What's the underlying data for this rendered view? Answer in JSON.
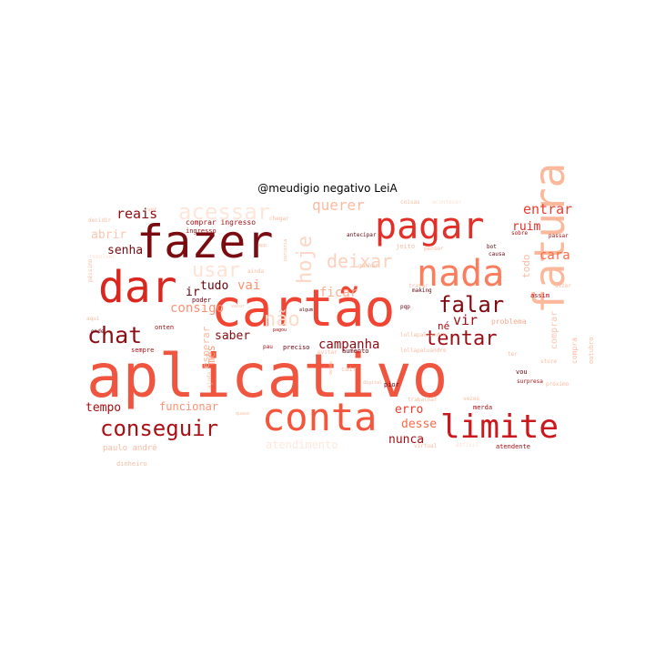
{
  "chart_data": {
    "type": "wordcloud",
    "title": "@meudigio negativo LeiA",
    "words": [
      {
        "text": "aplicativo",
        "weight": 100,
        "color": "#f0553f"
      },
      {
        "text": "cartão",
        "weight": 70,
        "color": "#f14432"
      },
      {
        "text": "fatura",
        "weight": 56,
        "color": "#fcb89b",
        "rotate": true
      },
      {
        "text": "fazer",
        "weight": 52,
        "color": "#7a0b10"
      },
      {
        "text": "pagar",
        "weight": 45,
        "color": "#e32f27"
      },
      {
        "text": "nada",
        "weight": 44,
        "color": "#fb7d5d"
      },
      {
        "text": "dar",
        "weight": 44,
        "color": "#d9261e"
      },
      {
        "text": "conta",
        "weight": 40,
        "color": "#f5553b"
      },
      {
        "text": "limite",
        "weight": 37,
        "color": "#cb181d"
      },
      {
        "text": "conseguir",
        "weight": 25,
        "color": "#ab1016"
      },
      {
        "text": "chat",
        "weight": 24,
        "color": "#8e0c12"
      },
      {
        "text": "falar",
        "weight": 22,
        "color": "#7f0b10"
      },
      {
        "text": "tentar",
        "weight": 19,
        "color": "#9d0d14"
      },
      {
        "text": "hoje",
        "weight": 19,
        "color": "#fdd5c4",
        "rotate": true
      },
      {
        "text": "acessar",
        "weight": 21,
        "color": "#fee6da"
      },
      {
        "text": "deixar",
        "weight": 19,
        "color": "#fdd0bc"
      },
      {
        "text": "usar",
        "weight": 19,
        "color": "#fee3d6"
      },
      {
        "text": "não",
        "weight": 20,
        "color": "#fddbc9"
      },
      {
        "text": "campanha",
        "weight": 12,
        "color": "#8b0b12"
      },
      {
        "text": "reais",
        "weight": 13,
        "color": "#8e0c12"
      },
      {
        "text": "entrar",
        "weight": 13,
        "color": "#ef3b2c"
      },
      {
        "text": "querer",
        "weight": 13,
        "color": "#fcbba1"
      },
      {
        "text": "vir",
        "weight": 13,
        "color": "#a50f15"
      },
      {
        "text": "senha",
        "weight": 11,
        "color": "#7a0b10"
      },
      {
        "text": "ruim",
        "weight": 11,
        "color": "#de2d26"
      },
      {
        "text": "cara",
        "weight": 11,
        "color": "#fb6a4a"
      },
      {
        "text": "ficar",
        "weight": 12,
        "color": "#fcae91"
      },
      {
        "text": "consigo",
        "weight": 12,
        "color": "#fc9272"
      },
      {
        "text": "tudo",
        "weight": 11,
        "color": "#67000d"
      },
      {
        "text": "vai",
        "weight": 11,
        "color": "#fc9272"
      },
      {
        "text": "ir",
        "weight": 11,
        "color": "#67000d"
      },
      {
        "text": "abrir",
        "weight": 11,
        "color": "#fcc5af"
      },
      {
        "text": "saber",
        "weight": 11,
        "color": "#8b0b12"
      },
      {
        "text": "mês",
        "weight": 11,
        "color": "#fc9c7d",
        "rotate": true
      },
      {
        "text": "esperar",
        "weight": 10,
        "color": "#fcbba1",
        "rotate": true
      },
      {
        "text": "nunca",
        "weight": 11,
        "color": "#a50f15"
      },
      {
        "text": "erro",
        "weight": 11,
        "color": "#ef3b2c"
      },
      {
        "text": "desse",
        "weight": 11,
        "color": "#fb6a4a"
      },
      {
        "text": "tempo",
        "weight": 11,
        "color": "#a50f15"
      },
      {
        "text": "funcionar",
        "weight": 10,
        "color": "#fc9272"
      },
      {
        "text": "atendimento",
        "weight": 10,
        "color": "#fee8dd"
      },
      {
        "text": "todo",
        "weight": 9,
        "color": "#fcbba1",
        "rotate": true
      },
      {
        "text": "comprar",
        "weight": 8,
        "color": "#fcc5af",
        "rotate": true
      },
      {
        "text": "né",
        "weight": 9,
        "color": "#a50f15"
      },
      {
        "text": "paulo andré",
        "weight": 7,
        "color": "#fcbba1"
      },
      {
        "text": "comprar ingresso",
        "weight": 6,
        "color": "#a50f15"
      },
      {
        "text": "ingresso",
        "weight": 6,
        "color": "#a50f15"
      },
      {
        "text": "compra",
        "weight": 6,
        "color": "#fcbba1",
        "rotate": true
      },
      {
        "text": "problema",
        "weight": 6,
        "color": "#fcaa8d"
      },
      {
        "text": "atendente",
        "weight": 6,
        "color": "#a50f15"
      },
      {
        "text": "outubro",
        "weight": 6,
        "color": "#fcbba1",
        "rotate": true
      },
      {
        "text": "aumento",
        "weight": 5,
        "color": "#67000d"
      },
      {
        "text": "antecipar",
        "weight": 5,
        "color": "#67000d"
      },
      {
        "text": "sobre",
        "weight": 5,
        "color": "#a50f15"
      },
      {
        "text": "passar",
        "weight": 5,
        "color": "#a50f15"
      },
      {
        "text": "jeito",
        "weight": 5,
        "color": "#fcbba1"
      },
      {
        "text": "tratar",
        "weight": 5,
        "color": "#fcbba1"
      },
      {
        "text": "making",
        "weight": 5,
        "color": "#67000d"
      },
      {
        "text": "assim",
        "weight": 5,
        "color": "#a50f15"
      },
      {
        "text": "poder",
        "weight": 5,
        "color": "#67000d"
      },
      {
        "text": "preciso",
        "weight": 5,
        "color": "#67000d"
      },
      {
        "text": "sempre",
        "weight": 5,
        "color": "#a50f15"
      },
      {
        "text": "onten",
        "weight": 5,
        "color": "#a50f15"
      },
      {
        "text": "evitar",
        "weight": 5,
        "color": "#fcbba1"
      },
      {
        "text": "cair",
        "weight": 5,
        "color": "#fcbba1"
      },
      {
        "text": "vou",
        "weight": 5,
        "color": "#67000d"
      },
      {
        "text": "pior",
        "weight": 5,
        "color": "#67000d"
      },
      {
        "text": "merda",
        "weight": 5,
        "color": "#a50f15"
      },
      {
        "text": "dinheiro",
        "weight": 5,
        "color": "#fcbba1"
      },
      {
        "text": "onde",
        "weight": 4,
        "color": "#67000d"
      },
      {
        "text": "ajuda",
        "weight": 4,
        "color": "#fcbba1",
        "rotate": true
      },
      {
        "text": "ainda",
        "weight": 4,
        "color": "#fcbba1"
      },
      {
        "text": "chegar",
        "weight": 4,
        "color": "#fcbba1"
      },
      {
        "text": "coisas",
        "weight": 4,
        "color": "#fcbba1"
      },
      {
        "text": "acontecer",
        "weight": 4,
        "color": "#fee0d2"
      },
      {
        "text": "decidir",
        "weight": 4,
        "color": "#fcbba1"
      },
      {
        "text": "resolver",
        "weight": 4,
        "color": "#fee0d2"
      },
      {
        "text": "ver",
        "weight": 4,
        "color": "#fcbba1"
      },
      {
        "text": "bot",
        "weight": 4,
        "color": "#67000d"
      },
      {
        "text": "causa",
        "weight": 4,
        "color": "#67000d"
      },
      {
        "text": "pensar",
        "weight": 4,
        "color": "#fcbba1"
      },
      {
        "text": "lollapaluandre",
        "weight": 4,
        "color": "#fcbba1"
      },
      {
        "text": "ter",
        "weight": 4,
        "color": "#fcbba1"
      },
      {
        "text": "store",
        "weight": 4,
        "color": "#fcbba1"
      },
      {
        "text": "virtual",
        "weight": 4,
        "color": "#fcbba1"
      },
      {
        "text": "difícil",
        "weight": 4,
        "color": "#fee0d2"
      },
      {
        "text": "vezes",
        "weight": 4,
        "color": "#fcbba1"
      },
      {
        "text": "trabalhar",
        "weight": 4,
        "color": "#fcbba1"
      },
      {
        "text": "ganhar",
        "weight": 4,
        "color": "#fcbba1"
      },
      {
        "text": "app",
        "weight": 4,
        "color": "#fcbba1"
      },
      {
        "text": "surpresa",
        "weight": 4,
        "color": "#a50f15"
      },
      {
        "text": "próximo",
        "weight": 4,
        "color": "#fcbba1"
      },
      {
        "text": "pagou",
        "weight": 4,
        "color": "#a50f15"
      },
      {
        "text": "pau",
        "weight": 4,
        "color": "#a50f15"
      },
      {
        "text": "aqui",
        "weight": 4,
        "color": "#fcbba1"
      },
      {
        "text": "péssimo",
        "weight": 4,
        "color": "#fcbba1",
        "rotate": true
      },
      {
        "text": "dizer",
        "weight": 4,
        "color": "#fcbba1"
      },
      {
        "text": "pqp",
        "weight": 4,
        "color": "#67000d"
      },
      {
        "text": "lollapaluandre",
        "weight": 4,
        "color": "#fcbba1"
      },
      {
        "text": "parceria",
        "weight": 3,
        "color": "#fcbba1",
        "rotate": true
      },
      {
        "text": "algum",
        "weight": 3,
        "color": "#67000d"
      },
      {
        "text": "valor",
        "weight": 3,
        "color": "#fcbba1"
      },
      {
        "text": "desde",
        "weight": 3,
        "color": "#fcbba1",
        "rotate": true
      },
      {
        "text": "quase",
        "weight": 3,
        "color": "#fcbba1"
      },
      {
        "text": "digital",
        "weight": 3,
        "color": "#fcbba1"
      }
    ]
  }
}
